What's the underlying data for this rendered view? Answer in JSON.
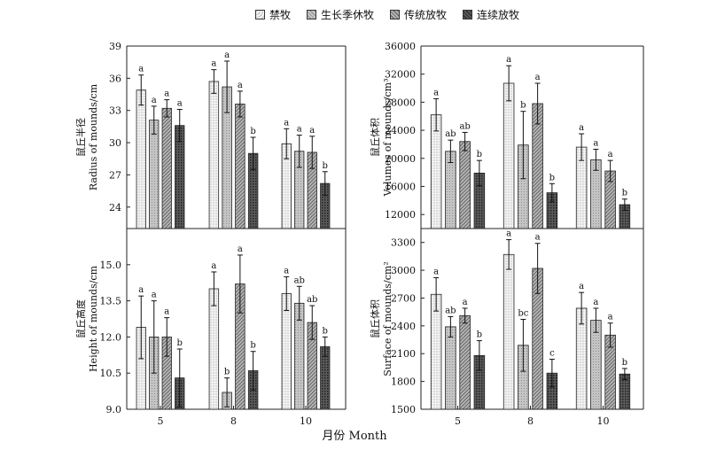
{
  "legend": [
    {
      "label": "禁牧",
      "pattern": "fine-dots",
      "color": "#ececec"
    },
    {
      "label": "生长季休牧",
      "pattern": "gray",
      "color": "#b8b8b8"
    },
    {
      "label": "传统放牧",
      "pattern": "hatch",
      "color": "#9a9a9a"
    },
    {
      "label": "连续放牧",
      "pattern": "dark",
      "color": "#4a4a4a"
    }
  ],
  "xaxis_label": "月份 Month",
  "chart_data": [
    {
      "type": "bar",
      "ylabel_cn": "鼠丘半径",
      "ylabel_en": "Radius of  mounds/cm",
      "categories": [
        "5",
        "8",
        "10"
      ],
      "ylim": [
        22,
        39
      ],
      "yticks": [
        "24",
        "27",
        "30",
        "33",
        "36",
        "39"
      ],
      "series": [
        {
          "name": "禁牧",
          "values": [
            34.9,
            35.7,
            29.9
          ],
          "errors": [
            1.4,
            1.1,
            1.4
          ],
          "letters": [
            "a",
            "a",
            "a"
          ]
        },
        {
          "name": "生长季休牧",
          "values": [
            32.1,
            35.2,
            29.2
          ],
          "errors": [
            1.3,
            2.4,
            1.5
          ],
          "letters": [
            "a",
            "a",
            "a"
          ]
        },
        {
          "name": "传统放牧",
          "values": [
            33.2,
            33.6,
            29.1
          ],
          "errors": [
            0.8,
            1.2,
            1.5
          ],
          "letters": [
            "a",
            "a",
            "a"
          ]
        },
        {
          "name": "连续放牧",
          "values": [
            31.6,
            29.0,
            26.2
          ],
          "errors": [
            1.5,
            1.5,
            1.1
          ],
          "letters": [
            "a",
            "b",
            "b"
          ]
        }
      ]
    },
    {
      "type": "bar",
      "ylabel_cn": "鼠丘体积",
      "ylabel_en": "Volumes of  mounds/cm³",
      "categories": [
        "5",
        "8",
        "10"
      ],
      "ylim": [
        10000,
        36000
      ],
      "yticks": [
        "12000",
        "16000",
        "20000",
        "24000",
        "28000",
        "32000",
        "36000"
      ],
      "series": [
        {
          "name": "禁牧",
          "values": [
            26200,
            30700,
            21600
          ],
          "errors": [
            2300,
            2500,
            1900
          ],
          "letters": [
            "a",
            "a",
            "a"
          ]
        },
        {
          "name": "生长季休牧",
          "values": [
            21000,
            21900,
            19800
          ],
          "errors": [
            1600,
            4800,
            1500
          ],
          "letters": [
            "ab",
            "b",
            "a"
          ]
        },
        {
          "name": "传统放牧",
          "values": [
            22400,
            27800,
            18200
          ],
          "errors": [
            1300,
            2900,
            1500
          ],
          "letters": [
            "ab",
            "a",
            "a"
          ]
        },
        {
          "name": "连续放牧",
          "values": [
            17900,
            15100,
            13400
          ],
          "errors": [
            1800,
            1300,
            800
          ],
          "letters": [
            "b",
            "b",
            "b"
          ]
        }
      ]
    },
    {
      "type": "bar",
      "ylabel_cn": "鼠丘高度",
      "ylabel_en": "Height of mounds/cm",
      "categories": [
        "5",
        "8",
        "10"
      ],
      "ylim": [
        9.0,
        16.5
      ],
      "yticks": [
        "9.0",
        "10.5",
        "12.0",
        "13.5",
        "15.0"
      ],
      "series": [
        {
          "name": "禁牧",
          "values": [
            12.4,
            14.0,
            13.8
          ],
          "errors": [
            1.3,
            0.7,
            0.7
          ],
          "letters": [
            "a",
            "a",
            "a"
          ]
        },
        {
          "name": "生长季休牧",
          "values": [
            12.0,
            9.7,
            13.4
          ],
          "errors": [
            1.5,
            0.6,
            0.7
          ],
          "letters": [
            "a",
            "b",
            "ab"
          ]
        },
        {
          "name": "传统放牧",
          "values": [
            12.0,
            14.2,
            12.6
          ],
          "errors": [
            0.8,
            1.2,
            0.7
          ],
          "letters": [
            "a",
            "a",
            "ab"
          ]
        },
        {
          "name": "连续放牧",
          "values": [
            10.3,
            10.6,
            11.6
          ],
          "errors": [
            1.2,
            0.8,
            0.4
          ],
          "letters": [
            "b",
            "b",
            "b"
          ]
        }
      ]
    },
    {
      "type": "bar",
      "ylabel_cn": "鼠丘体积",
      "ylabel_en": "Surface of  mounds/cm²",
      "categories": [
        "5",
        "8",
        "10"
      ],
      "ylim": [
        1500,
        3450
      ],
      "yticks": [
        "1500",
        "1800",
        "2100",
        "2400",
        "2700",
        "3000",
        "3300"
      ],
      "series": [
        {
          "name": "禁牧",
          "values": [
            2740,
            3170,
            2590
          ],
          "errors": [
            180,
            160,
            170
          ],
          "letters": [
            "a",
            "a",
            "a"
          ]
        },
        {
          "name": "生长季休牧",
          "values": [
            2390,
            2190,
            2460
          ],
          "errors": [
            110,
            280,
            130
          ],
          "letters": [
            "ab",
            "bc",
            "a"
          ]
        },
        {
          "name": "传统放牧",
          "values": [
            2510,
            3020,
            2300
          ],
          "errors": [
            80,
            270,
            130
          ],
          "letters": [
            "a",
            "a",
            "a"
          ]
        },
        {
          "name": "连续放牧",
          "values": [
            2080,
            1890,
            1880
          ],
          "errors": [
            160,
            150,
            60
          ],
          "letters": [
            "b",
            "c",
            "b"
          ]
        }
      ]
    }
  ]
}
